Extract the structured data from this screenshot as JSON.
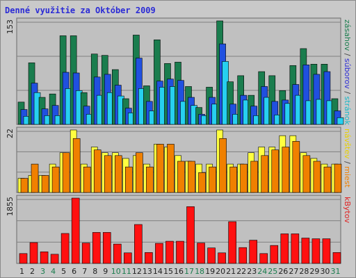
{
  "title": "Denné využitie za Október 2009",
  "chart_data": [
    {
      "type": "bar",
      "panel": "top",
      "y_max_label": "153",
      "ylim": [
        0,
        153
      ],
      "grid": true,
      "categories": [
        "1",
        "2",
        "3",
        "4",
        "5",
        "6",
        "7",
        "8",
        "9",
        "10",
        "11",
        "12",
        "13",
        "14",
        "15",
        "16",
        "17",
        "18",
        "19",
        "20",
        "21",
        "22",
        "23",
        "24",
        "25",
        "26",
        "27",
        "28",
        "29",
        "30",
        "31"
      ],
      "right_label_parts": [
        {
          "text": "zásahov",
          "color": "#1a7d4e"
        },
        {
          "text": " / ",
          "color": "#444444"
        },
        {
          "text": "súborov",
          "color": "#2b2bd6"
        },
        {
          "text": " / ",
          "color": "#444444"
        },
        {
          "text": "stránok",
          "color": "#19b8c8"
        }
      ],
      "series": [
        {
          "name": "zásahov",
          "color": "#1a7d4e",
          "values": [
            33,
            91,
            40,
            45,
            131,
            131,
            47,
            104,
            102,
            81,
            38,
            132,
            57,
            125,
            90,
            92,
            56,
            25,
            55,
            153,
            63,
            72,
            43,
            78,
            72,
            50,
            87,
            112,
            89,
            89,
            38
          ]
        },
        {
          "name": "súborov",
          "color": "#2050e0",
          "values": [
            22,
            61,
            23,
            28,
            77,
            76,
            27,
            70,
            74,
            58,
            24,
            98,
            34,
            64,
            67,
            65,
            40,
            15,
            40,
            119,
            30,
            43,
            27,
            56,
            34,
            36,
            59,
            88,
            74,
            78,
            20
          ]
        },
        {
          "name": "stránok",
          "color": "#27d0f0",
          "values": [
            12,
            47,
            13,
            13,
            53,
            50,
            15,
            43,
            47,
            42,
            17,
            53,
            20,
            55,
            56,
            34,
            28,
            13,
            30,
            93,
            15,
            36,
            13,
            40,
            14,
            31,
            43,
            35,
            37,
            35,
            10
          ]
        }
      ]
    },
    {
      "type": "bar",
      "panel": "middle",
      "y_max_label": "22",
      "ylim": [
        0,
        22
      ],
      "grid": true,
      "right_label_parts": [
        {
          "text": "návštev",
          "color": "#e8d000"
        },
        {
          "text": " / ",
          "color": "#444444"
        },
        {
          "text": "miest",
          "color": "#f08000"
        }
      ],
      "series": [
        {
          "name": "návštev",
          "color": "#ffff40",
          "values": [
            5,
            6,
            6,
            10,
            14,
            22,
            10,
            16,
            14,
            14,
            12,
            13,
            10,
            17,
            16,
            13,
            11,
            10,
            10,
            22,
            10,
            10,
            14,
            16,
            16,
            20,
            20,
            14,
            12,
            10,
            10
          ]
        },
        {
          "name": "miest",
          "color": "#f08000",
          "values": [
            5,
            10,
            6,
            9,
            14,
            19,
            9,
            15,
            13,
            13,
            9,
            14,
            9,
            17,
            17,
            11,
            11,
            7,
            9,
            19,
            9,
            10,
            11,
            13,
            15,
            16,
            18,
            13,
            11,
            9,
            10
          ]
        }
      ]
    },
    {
      "type": "bar",
      "panel": "bottom",
      "y_max_label": "1855",
      "ylim": [
        0,
        1855
      ],
      "grid": true,
      "right_label_parts": [
        {
          "text": "kBytov",
          "color": "#e02020"
        }
      ],
      "series": [
        {
          "name": "kBytov",
          "color": "#ff1010",
          "values": [
            280,
            592,
            330,
            260,
            850,
            1855,
            580,
            880,
            880,
            550,
            300,
            1105,
            310,
            570,
            630,
            630,
            1612,
            580,
            440,
            300,
            1185,
            450,
            660,
            280,
            510,
            840,
            840,
            720,
            700,
            700,
            310
          ]
        }
      ]
    }
  ],
  "weekend_days": [
    "3",
    "4",
    "10",
    "11",
    "17",
    "18",
    "24",
    "25",
    "31"
  ],
  "colors": {
    "weekday_label": "#202020",
    "weekend_label": "#1a7d4e",
    "panel_bg": "#c0c0c0",
    "grid": "#808080",
    "bar_border": "#000000"
  }
}
